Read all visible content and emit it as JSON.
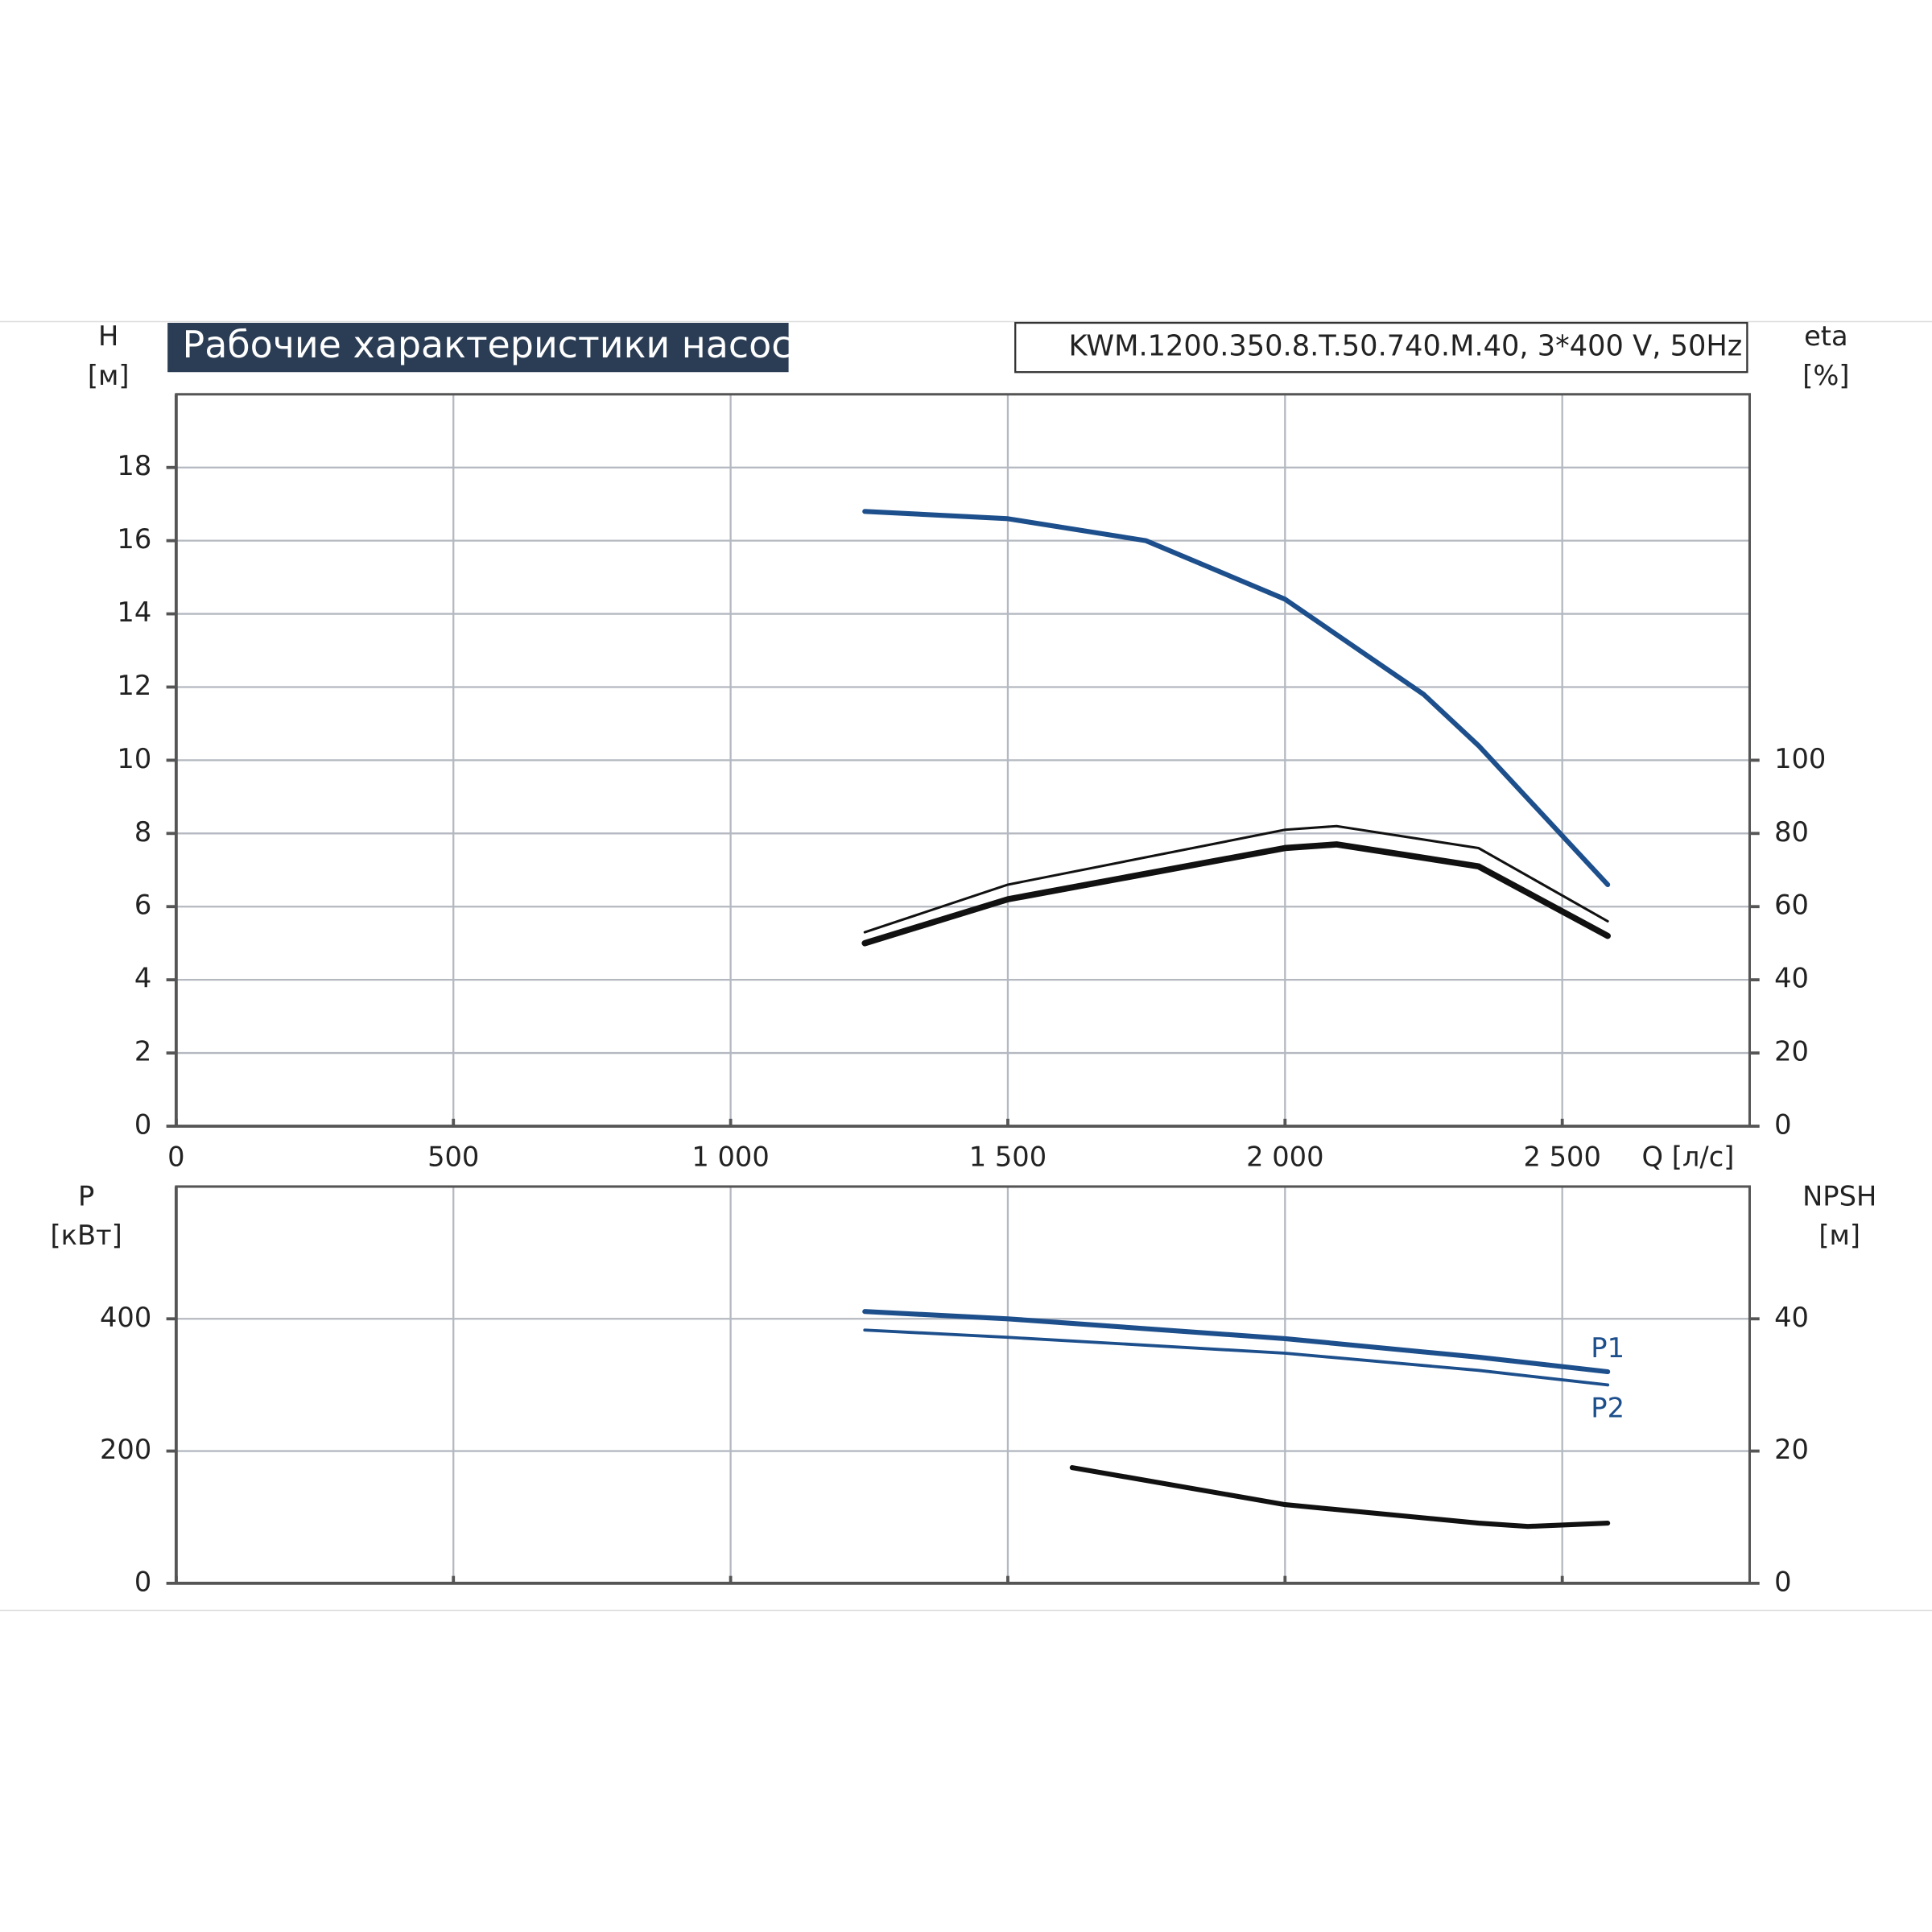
{
  "chart_data": [
    {
      "type": "line",
      "title": "Рабочие характеристики насоса",
      "subtitle": "KWM.1200.350.8.T.50.740.M.40, 3*400 V, 50Hz",
      "x_label": "Q [л/с]",
      "y_label": [
        "H",
        "[м]"
      ],
      "y2_label": [
        "eta",
        "[%]"
      ],
      "xlim": [
        0,
        2838
      ],
      "xticks": [
        0,
        500,
        {
          "value": 1000,
          "label": "1 000"
        },
        {
          "value": 1500,
          "label": "1 500"
        },
        {
          "value": 2000,
          "label": "2 000"
        },
        {
          "value": 2500,
          "label": "2 500"
        }
      ],
      "ylim": [
        0,
        20
      ],
      "yticks": [
        0,
        2,
        4,
        6,
        8,
        10,
        12,
        14,
        16,
        18
      ],
      "y2lim": [
        0,
        200
      ],
      "y2ticks": [
        0,
        20,
        40,
        60,
        80,
        100
      ],
      "grid": true,
      "series": [
        {
          "color": "#1d4f8c",
          "width": 4,
          "x": [
            1242,
            1500,
            1749,
            2000,
            2250,
            2349,
            2582
          ],
          "values": [
            16.8,
            16.6,
            16.0,
            14.4,
            11.8,
            10.4,
            6.6
          ]
        },
        {
          "color": "#111111",
          "width": 2,
          "axis": "y2",
          "x": [
            1242,
            1500,
            2000,
            2093,
            2349,
            2582
          ],
          "values": [
            53,
            66,
            81,
            82,
            76,
            56
          ]
        },
        {
          "color": "#111111",
          "width": 5,
          "axis": "y2",
          "x": [
            1242,
            1500,
            2000,
            2093,
            2349,
            2582
          ],
          "values": [
            50,
            62,
            76,
            77,
            71,
            52
          ]
        }
      ]
    },
    {
      "type": "line",
      "y_label": [
        "P",
        "[кВт]"
      ],
      "y2_label": [
        "NPSH",
        "[м]"
      ],
      "xlim": [
        0,
        2838
      ],
      "xticks": [
        0,
        500,
        1000,
        1500,
        2000,
        2500
      ],
      "ylim": [
        0,
        600
      ],
      "yticks": [
        0,
        200,
        400
      ],
      "y2lim": [
        0,
        60
      ],
      "y2ticks": [
        0,
        20,
        40
      ],
      "grid": true,
      "series": [
        {
          "name": "P1",
          "color": "#1d4f8c",
          "width": 4,
          "x": [
            1242,
            1500,
            2000,
            2349,
            2582
          ],
          "values": [
            411,
            400,
            370,
            342,
            320
          ]
        },
        {
          "name": "P2",
          "color": "#1d4f8c",
          "width": 2.5,
          "x": [
            1242,
            1500,
            2000,
            2349,
            2582
          ],
          "values": [
            383,
            372,
            348,
            322,
            300
          ]
        },
        {
          "color": "#111111",
          "width": 4,
          "axis": "y2",
          "x": [
            1616,
            2000,
            2349,
            2438,
            2582
          ],
          "values": [
            17.5,
            11.9,
            9.1,
            8.6,
            9.1
          ]
        }
      ]
    }
  ]
}
